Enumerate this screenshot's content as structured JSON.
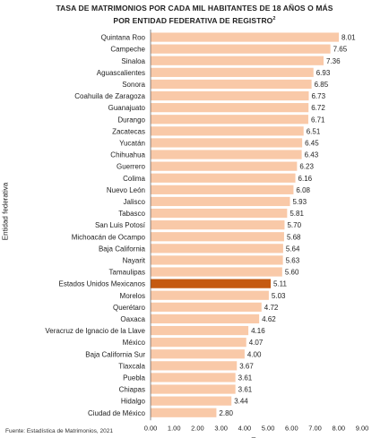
{
  "title_line1": "Tasa de matrimonios por cada mil habitantes de 18 años o más",
  "title_line2": "por entidad federativa de registro",
  "title_superscript": "2",
  "source": "Fuente: Estadística de Matrimonios, 2021",
  "colors": {
    "bar": "#f9c9a8",
    "highlight": "#c55a11",
    "axis": "#555555"
  },
  "chart_data": {
    "type": "bar",
    "orientation": "horizontal",
    "xlabel": "Tasa",
    "ylabel": "Entidad federativa",
    "xlim": [
      0,
      9
    ],
    "xticks": [
      "0.00",
      "1.00",
      "2.00",
      "3.00",
      "4.00",
      "5.00",
      "6.00",
      "7.00",
      "8.00",
      "9.00"
    ],
    "highlight_category": "Estados Unidos Mexicanos",
    "categories": [
      "Quintana Roo",
      "Campeche",
      "Sinaloa",
      "Aguascalientes",
      "Sonora",
      "Coahuila de Zaragoza",
      "Guanajuato",
      "Durango",
      "Zacatecas",
      "Yucatán",
      "Chihuahua",
      "Guerrero",
      "Colima",
      "Nuevo León",
      "Jalisco",
      "Tabasco",
      "San Luis Potosí",
      "Michoacán de Ocampo",
      "Baja California",
      "Nayarit",
      "Tamaulipas",
      "Estados Unidos Mexicanos",
      "Morelos",
      "Querétaro",
      "Oaxaca",
      "Veracruz de Ignacio de la Llave",
      "México",
      "Baja California Sur",
      "Tlaxcala",
      "Puebla",
      "Chiapas",
      "Hidalgo",
      "Ciudad de México"
    ],
    "values": [
      8.01,
      7.65,
      7.36,
      6.93,
      6.85,
      6.73,
      6.72,
      6.71,
      6.51,
      6.45,
      6.43,
      6.23,
      6.16,
      6.08,
      5.93,
      5.81,
      5.7,
      5.68,
      5.64,
      5.63,
      5.6,
      5.11,
      5.03,
      4.72,
      4.62,
      4.16,
      4.07,
      4.0,
      3.67,
      3.61,
      3.61,
      3.44,
      2.8
    ],
    "value_labels": [
      "8.01",
      "7.65",
      "7.36",
      "6.93",
      "6.85",
      "6.73",
      "6.72",
      "6.71",
      "6.51",
      "6.45",
      "6.43",
      "6.23",
      "6.16",
      "6.08",
      "5.93",
      "5.81",
      "5.70",
      "5.68",
      "5.64",
      "5.63",
      "5.60",
      "5.11",
      "5.03",
      "4.72",
      "4.62",
      "4.16",
      "4.07",
      "4.00",
      "3.67",
      "3.61",
      "3.61",
      "3.44",
      "2.80"
    ]
  }
}
